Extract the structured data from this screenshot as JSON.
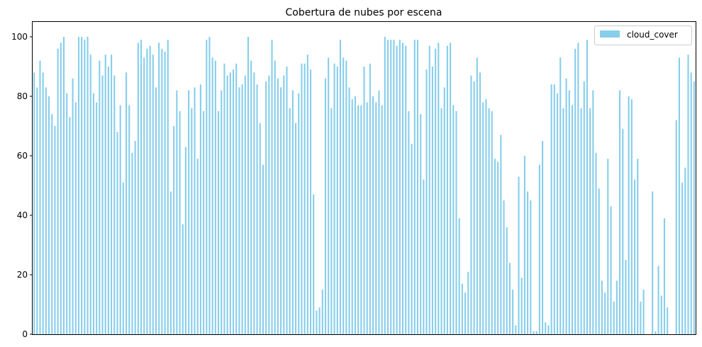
{
  "chart_data": {
    "type": "bar",
    "title": "Cobertura de nubes por escena",
    "xlabel": "",
    "ylabel": "",
    "ylim": [
      0,
      105
    ],
    "yticks": [
      0,
      20,
      40,
      60,
      80,
      100
    ],
    "grid": false,
    "legend_position": "top-right",
    "series": [
      {
        "name": "cloud_cover",
        "color": "#87ceeb",
        "values": [
          88,
          83,
          92,
          88,
          83,
          80,
          74,
          70,
          96,
          98,
          100,
          81,
          73,
          86,
          78,
          100,
          100,
          99,
          100,
          94,
          81,
          78,
          92,
          87,
          94,
          90,
          94,
          87,
          68,
          77,
          51,
          88,
          77,
          61,
          65,
          98,
          99,
          93,
          96,
          97,
          94,
          83,
          98,
          96,
          95,
          99,
          48,
          70,
          82,
          75,
          37,
          63,
          82,
          76,
          83,
          59,
          84,
          75,
          99,
          100,
          93,
          92,
          75,
          82,
          91,
          87,
          88,
          89,
          91,
          83,
          84,
          87,
          100,
          92,
          88,
          84,
          71,
          57,
          85,
          87,
          99,
          92,
          86,
          83,
          87,
          90,
          76,
          82,
          71,
          81,
          91,
          91,
          94,
          89,
          47,
          8,
          9,
          15,
          86,
          93,
          76,
          91,
          90,
          99,
          93,
          92,
          83,
          79,
          80,
          77,
          77,
          90,
          78,
          91,
          80,
          78,
          82,
          77,
          100,
          99,
          99,
          99,
          97,
          99,
          98,
          97,
          75,
          64,
          99,
          99,
          74,
          52,
          89,
          97,
          90,
          96,
          98,
          76,
          83,
          97,
          98,
          77,
          75,
          39,
          17,
          14,
          21,
          87,
          85,
          93,
          88,
          78,
          79,
          76,
          75,
          59,
          58,
          67,
          45,
          36,
          24,
          15,
          3,
          53,
          19,
          60,
          48,
          45,
          1,
          1,
          57,
          65,
          4,
          3,
          84,
          84,
          81,
          93,
          76,
          86,
          82,
          77,
          96,
          98,
          76,
          85,
          99,
          76,
          82,
          61,
          49,
          18,
          14,
          59,
          43,
          11,
          18,
          82,
          69,
          25,
          80,
          79,
          52,
          59,
          11,
          15,
          0,
          0,
          48,
          1,
          23,
          13,
          39,
          9,
          0,
          0,
          72,
          93,
          51,
          56,
          94,
          88,
          85
        ]
      }
    ]
  }
}
